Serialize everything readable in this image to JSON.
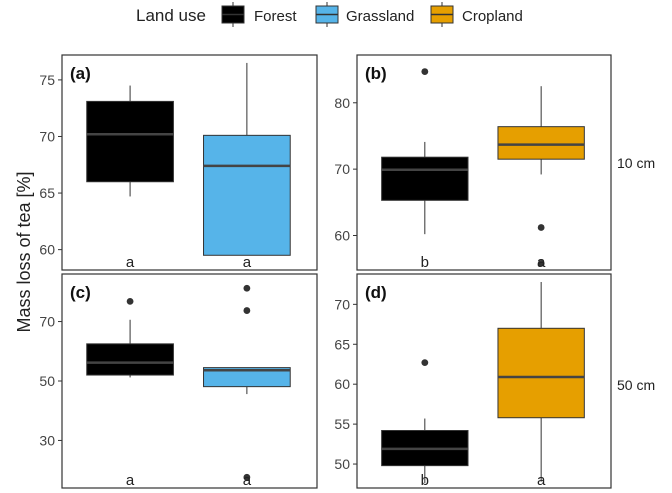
{
  "legend": {
    "title": "Land use",
    "items": [
      {
        "label": "Forest",
        "color": "#000000"
      },
      {
        "label": "Grassland",
        "color": "#56B4E9"
      },
      {
        "label": "Cropland",
        "color": "#E69F00"
      }
    ]
  },
  "ylabel": "Mass loss of tea [%]",
  "rows": [
    "10 cm",
    "50 cm"
  ],
  "chart_data": [
    {
      "type": "box",
      "panel": "(a)",
      "depth": "10 cm",
      "ylim": [
        58.2,
        77.2
      ],
      "yticks": [
        60,
        65,
        70,
        75
      ],
      "boxes": [
        {
          "group": "Forest",
          "color": "#000000",
          "min": 64.7,
          "q1": 66.0,
          "median": 70.2,
          "q3": 73.1,
          "max": 74.5,
          "outliers": [],
          "letter": "a"
        },
        {
          "group": "Grassland",
          "color": "#56B4E9",
          "min": 59.5,
          "q1": 59.5,
          "median": 67.4,
          "q3": 70.1,
          "max": 76.5,
          "outliers": [],
          "letter": "a"
        }
      ]
    },
    {
      "type": "box",
      "panel": "(b)",
      "depth": "10 cm",
      "ylim": [
        54.8,
        87.2
      ],
      "yticks": [
        60,
        70,
        80
      ],
      "boxes": [
        {
          "group": "Forest",
          "color": "#000000",
          "min": 60.2,
          "q1": 65.3,
          "median": 69.9,
          "q3": 71.8,
          "max": 74.1,
          "outliers": [
            84.7
          ],
          "letter": "b"
        },
        {
          "group": "Cropland",
          "color": "#E69F00",
          "min": 69.2,
          "q1": 71.5,
          "median": 73.7,
          "q3": 76.4,
          "max": 82.5,
          "outliers": [
            61.2,
            55.8
          ],
          "letter": "a"
        }
      ]
    },
    {
      "type": "box",
      "panel": "(c)",
      "depth": "50 cm",
      "ylim": [
        14,
        86
      ],
      "yticks": [
        30,
        50,
        70
      ],
      "boxes": [
        {
          "group": "Forest",
          "color": "#000000",
          "min": 51.2,
          "q1": 52.0,
          "median": 56.2,
          "q3": 62.5,
          "max": 70.6,
          "outliers": [
            76.8
          ],
          "letter": "a"
        },
        {
          "group": "Grassland",
          "color": "#56B4E9",
          "min": 45.6,
          "q1": 48.1,
          "median": 53.6,
          "q3": 54.5,
          "max": 54.5,
          "outliers": [
            81.2,
            73.7,
            17.6
          ],
          "letter": "a"
        }
      ]
    },
    {
      "type": "box",
      "panel": "(d)",
      "depth": "50 cm",
      "ylim": [
        47.0,
        73.8
      ],
      "yticks": [
        50,
        55,
        60,
        65,
        70
      ],
      "boxes": [
        {
          "group": "Forest",
          "color": "#000000",
          "min": 47.6,
          "q1": 49.8,
          "median": 51.9,
          "q3": 54.2,
          "max": 55.7,
          "outliers": [
            62.7
          ],
          "letter": "b"
        },
        {
          "group": "Cropland",
          "color": "#E69F00",
          "min": 47.8,
          "q1": 55.8,
          "median": 60.9,
          "q3": 67.0,
          "max": 72.8,
          "outliers": [],
          "letter": "a"
        }
      ]
    }
  ]
}
